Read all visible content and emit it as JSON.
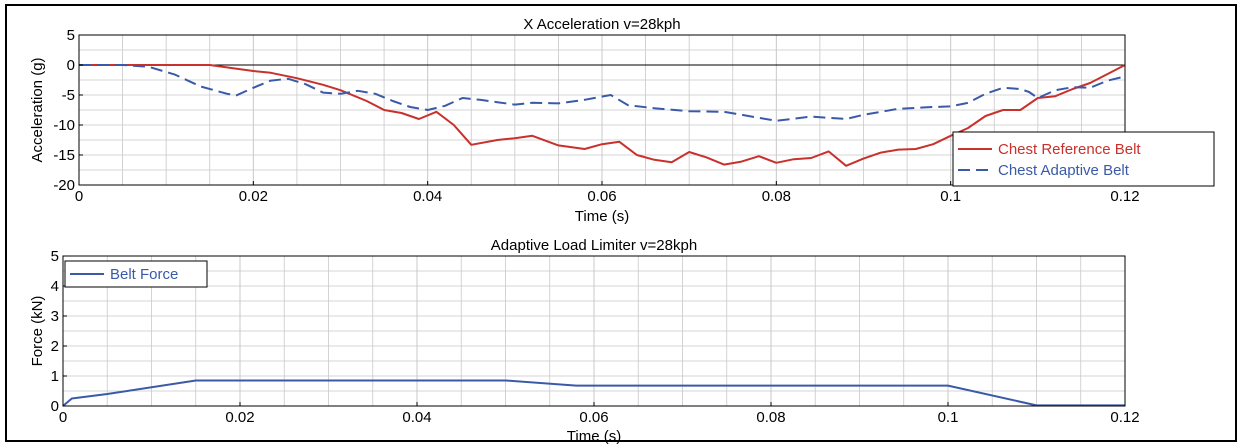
{
  "colors": {
    "reference": "#c8312c",
    "adaptive": "#3a5aa8",
    "belt": "#3a5aa8",
    "grid": "#c8c8c8",
    "zero_line": "#000000"
  },
  "chart_data": [
    {
      "type": "line",
      "title": "X Acceleration v=28kph",
      "xlabel": "Time (s)",
      "ylabel": "Acceleration (g)",
      "xlim": [
        0,
        0.12
      ],
      "ylim": [
        -20,
        5
      ],
      "xticks": [
        0,
        0.02,
        0.04,
        0.06,
        0.08,
        0.1,
        0.12
      ],
      "xtick_labels": [
        "0",
        "0.02",
        "0.04",
        "0.06",
        "0.08",
        "0.1",
        "0.12"
      ],
      "yticks": [
        5,
        0,
        -5,
        -10,
        -15,
        -20
      ],
      "ytick_labels": [
        "5",
        "0",
        "-5",
        "-10",
        "-15",
        "-20"
      ],
      "grid": true,
      "legend": "bottom-right",
      "series": [
        {
          "name": "Chest Reference Belt",
          "style": "solid",
          "x": [
            0,
            0.005,
            0.01,
            0.015,
            0.018,
            0.02,
            0.022,
            0.025,
            0.028,
            0.03,
            0.033,
            0.035,
            0.037,
            0.039,
            0.041,
            0.043,
            0.045,
            0.048,
            0.05,
            0.052,
            0.055,
            0.058,
            0.06,
            0.062,
            0.064,
            0.066,
            0.068,
            0.07,
            0.072,
            0.074,
            0.076,
            0.078,
            0.08,
            0.082,
            0.084,
            0.086,
            0.088,
            0.09,
            0.092,
            0.094,
            0.096,
            0.098,
            0.1,
            0.102,
            0.104,
            0.106,
            0.108,
            0.11,
            0.112,
            0.114,
            0.116,
            0.118,
            0.12
          ],
          "y": [
            0,
            0,
            0,
            0,
            -0.6,
            -1,
            -1.3,
            -2.2,
            -3.3,
            -4.2,
            -6,
            -7.5,
            -8,
            -9,
            -7.8,
            -10,
            -13.3,
            -12.5,
            -12.2,
            -11.8,
            -13.4,
            -14,
            -13.2,
            -12.8,
            -15,
            -15.8,
            -16.2,
            -14.5,
            -15.4,
            -16.6,
            -16.1,
            -15.2,
            -16.3,
            -15.7,
            -15.5,
            -14.4,
            -16.8,
            -15.6,
            -14.6,
            -14.1,
            -14,
            -13.2,
            -11.8,
            -10.5,
            -8.5,
            -7.5,
            -7.5,
            -5.5,
            -5.2,
            -4,
            -3,
            -1.5,
            0
          ]
        },
        {
          "name": "Chest Adaptive Belt",
          "style": "dashed",
          "x": [
            0,
            0.005,
            0.008,
            0.011,
            0.014,
            0.017,
            0.018,
            0.02,
            0.022,
            0.024,
            0.026,
            0.028,
            0.03,
            0.032,
            0.034,
            0.036,
            0.038,
            0.04,
            0.042,
            0.044,
            0.046,
            0.048,
            0.05,
            0.052,
            0.055,
            0.058,
            0.061,
            0.063,
            0.066,
            0.07,
            0.074,
            0.078,
            0.08,
            0.084,
            0.088,
            0.09,
            0.094,
            0.098,
            0.1,
            0.102,
            0.104,
            0.106,
            0.108,
            0.109,
            0.11,
            0.112,
            0.114,
            0.116,
            0.118,
            0.12
          ],
          "y": [
            0,
            0,
            -0.3,
            -1.6,
            -3.6,
            -4.8,
            -5.1,
            -3.8,
            -2.6,
            -2.3,
            -3.2,
            -4.6,
            -4.8,
            -4.3,
            -4.8,
            -6,
            -7,
            -7.5,
            -6.8,
            -5.5,
            -5.8,
            -6.2,
            -6.6,
            -6.3,
            -6.4,
            -5.8,
            -5,
            -6.7,
            -7.2,
            -7.7,
            -7.8,
            -8.8,
            -9.3,
            -8.6,
            -9,
            -8.3,
            -7.3,
            -7,
            -6.9,
            -6.3,
            -4.8,
            -3.8,
            -4,
            -4.5,
            -5.5,
            -4.2,
            -3.7,
            -3.8,
            -2.6,
            -1.9
          ]
        }
      ]
    },
    {
      "type": "line",
      "title": "Adaptive Load Limiter v=28kph",
      "xlabel": "Time (s)",
      "ylabel": "Force (kN)",
      "xlim": [
        0,
        0.12
      ],
      "ylim": [
        0,
        5
      ],
      "xticks": [
        0,
        0.02,
        0.04,
        0.06,
        0.08,
        0.1,
        0.12
      ],
      "xtick_labels": [
        "0",
        "0.02",
        "0.04",
        "0.06",
        "0.08",
        "0.1",
        "0.12"
      ],
      "yticks": [
        5,
        4,
        3,
        2,
        1,
        0
      ],
      "ytick_labels": [
        "5",
        "4",
        "3",
        "2",
        "1",
        "0"
      ],
      "grid": true,
      "legend": "top-left",
      "series": [
        {
          "name": "Belt Force",
          "style": "solid",
          "x": [
            0,
            0.001,
            0.005,
            0.015,
            0.05,
            0.058,
            0.1,
            0.11,
            0.12
          ],
          "y": [
            0,
            0.25,
            0.4,
            0.85,
            0.85,
            0.68,
            0.68,
            0.02,
            0.02
          ]
        }
      ]
    }
  ]
}
